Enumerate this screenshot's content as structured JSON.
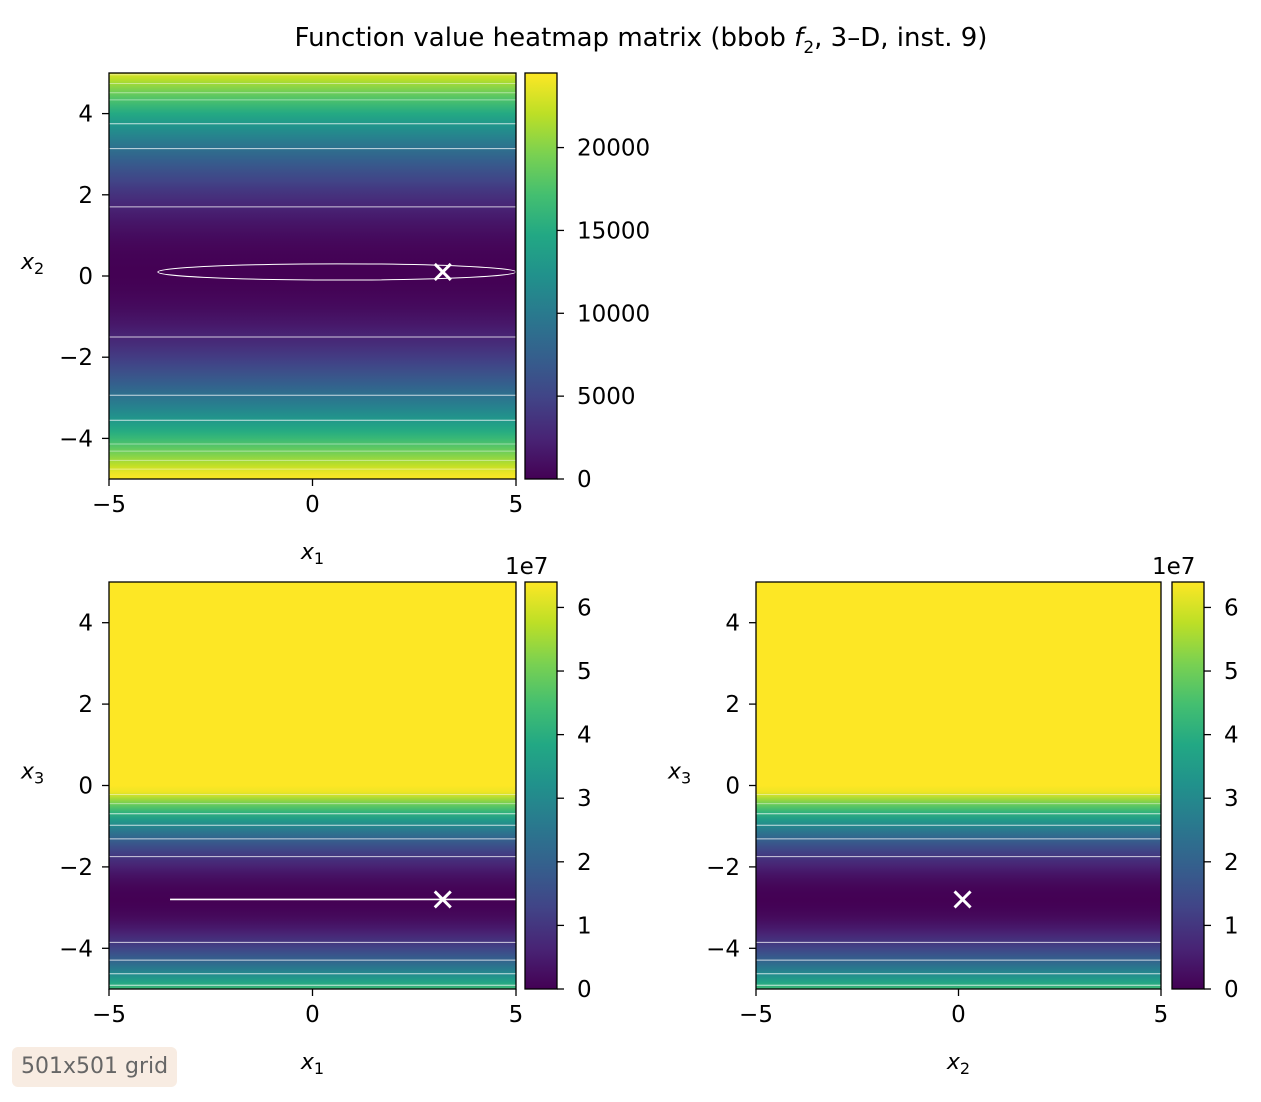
{
  "chart_data": {
    "type": "heatmap",
    "title": "Function value heatmap matrix (bbob f₂, 3–D, inst. 9)",
    "title_parts": {
      "before": "Function value heatmap matrix (bbob ",
      "func": "f",
      "sub": "2",
      "after": ", 3–D, inst. 9)"
    },
    "colormap": [
      "#440154",
      "#482475",
      "#414487",
      "#355f8d",
      "#2a788e",
      "#21918c",
      "#22a884",
      "#44bf70",
      "#7ad151",
      "#bddf26",
      "#fde725"
    ],
    "contour_color": "#ffffff",
    "marker_color": "#ffffff",
    "panels": [
      {
        "id": "x1-x2",
        "xlabel": "x",
        "xlabel_sub": "1",
        "ylabel": "x",
        "ylabel_sub": "2",
        "xlim": [
          -5,
          5
        ],
        "ylim": [
          -5,
          5
        ],
        "xticks": [
          -5,
          0,
          5
        ],
        "yticks": [
          -4,
          -2,
          0,
          2,
          4
        ],
        "xticklabels": [
          "−5",
          "0",
          "5"
        ],
        "yticklabels": [
          "−4",
          "−2",
          "0",
          "2",
          "4"
        ],
        "optimum": [
          3.2,
          0.1
        ],
        "vary_axis": "y",
        "quad": {
          "center": 0.1,
          "scale": 975,
          "min": 0,
          "max": 24500
        },
        "contour_levels": [
          2500,
          9000,
          13000,
          17500,
          19000,
          21000,
          23000
        ],
        "contour_ellipse": {
          "cx": 0.6,
          "cy": 0.1,
          "rx": 4.4,
          "ry": 0.2,
          "clip_x_max": 5
        },
        "contour_segment": null,
        "colorbar": {
          "min": 0,
          "max": 24500,
          "ticks": [
            0,
            5000,
            10000,
            15000,
            20000
          ],
          "ticklabels": [
            "0",
            "5000",
            "10000",
            "15000",
            "20000"
          ],
          "offset": ""
        }
      },
      {
        "id": "x1-x3",
        "xlabel": "x",
        "xlabel_sub": "1",
        "ylabel": "x",
        "ylabel_sub": "3",
        "xlim": [
          -5,
          5
        ],
        "ylim": [
          -5,
          5
        ],
        "xticks": [
          -5,
          0,
          5
        ],
        "yticks": [
          -4,
          -2,
          0,
          2,
          4
        ],
        "xticklabels": [
          "−5",
          "0",
          "5"
        ],
        "yticklabels": [
          "−4",
          "−2",
          "0",
          "2",
          "4"
        ],
        "optimum": [
          3.2,
          -2.8
        ],
        "vary_axis": "y",
        "quad": {
          "center": -2.8,
          "scale": 0.9012,
          "min": 0,
          "max": 6.4
        },
        "contour_levels": [
          1,
          2,
          3,
          4,
          5,
          6
        ],
        "contour_ellipse": null,
        "contour_segment": {
          "x0": -3.5,
          "x1": 5,
          "y": -2.8
        },
        "colorbar": {
          "min": 0,
          "max": 6.4,
          "ticks": [
            0,
            1,
            2,
            3,
            4,
            5,
            6
          ],
          "ticklabels": [
            "0",
            "1",
            "2",
            "3",
            "4",
            "5",
            "6"
          ],
          "offset": "1e7"
        }
      },
      {
        "id": "x2-x3",
        "xlabel": "x",
        "xlabel_sub": "2",
        "ylabel": "x",
        "ylabel_sub": "3",
        "xlim": [
          -5,
          5
        ],
        "ylim": [
          -5,
          5
        ],
        "xticks": [
          -5,
          0,
          5
        ],
        "yticks": [
          -4,
          -2,
          0,
          2,
          4
        ],
        "xticklabels": [
          "−5",
          "0",
          "5"
        ],
        "yticklabels": [
          "−4",
          "−2",
          "0",
          "2",
          "4"
        ],
        "optimum": [
          0.1,
          -2.8
        ],
        "vary_axis": "y",
        "quad": {
          "center": -2.8,
          "scale": 0.9012,
          "min": 0,
          "max": 6.4
        },
        "contour_levels": [
          1,
          2,
          3,
          4,
          5,
          6
        ],
        "contour_ellipse": null,
        "contour_segment": null,
        "colorbar": {
          "min": 0,
          "max": 6.4,
          "ticks": [
            0,
            1,
            2,
            3,
            4,
            5,
            6
          ],
          "ticklabels": [
            "0",
            "1",
            "2",
            "3",
            "4",
            "5",
            "6"
          ],
          "offset": "1e7"
        }
      }
    ]
  },
  "badge": {
    "text": "501x501 grid"
  }
}
